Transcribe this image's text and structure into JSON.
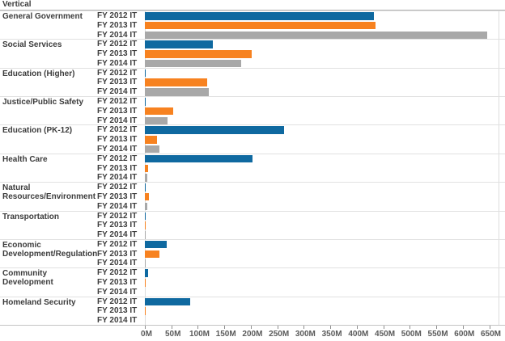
{
  "header": {
    "label": "Vertical"
  },
  "chart_data": {
    "type": "bar",
    "orientation": "horizontal",
    "title": "Vertical",
    "unit": "USD millions",
    "legend": "inline-row-labels",
    "grid": "category-separator-lines",
    "categories": [
      "General Government",
      "Social Services",
      "Education (Higher)",
      "Justice/Public Safety",
      "Education (PK-12)",
      "Health Care",
      "Natural Resources/Environment",
      "Transportation",
      "Economic Development/Regulation",
      "Community Development",
      "Homeland Security"
    ],
    "series": [
      {
        "name": "FY 2012 IT",
        "color": "#0f69a0",
        "values": [
          432,
          128,
          1.5,
          1.5,
          263,
          203,
          1.5,
          1.5,
          41,
          6,
          86
        ]
      },
      {
        "name": "FY 2013 IT",
        "color": "#f78220",
        "values": [
          435,
          202,
          118,
          53,
          23,
          6,
          7,
          1.5,
          28,
          1.5,
          1.5
        ]
      },
      {
        "name": "FY 2014 IT",
        "color": "#a8a8a8",
        "values": [
          646,
          182,
          121,
          43,
          27,
          5,
          5,
          1.5,
          2,
          0,
          0
        ]
      }
    ],
    "xlim": [
      0,
      650
    ],
    "x_tick_step_m": 50,
    "x_tick_labels": [
      "0M",
      "50M",
      "100M",
      "150M",
      "200M",
      "250M",
      "300M",
      "350M",
      "400M",
      "450M",
      "500M",
      "550M",
      "600M",
      "650M"
    ]
  }
}
